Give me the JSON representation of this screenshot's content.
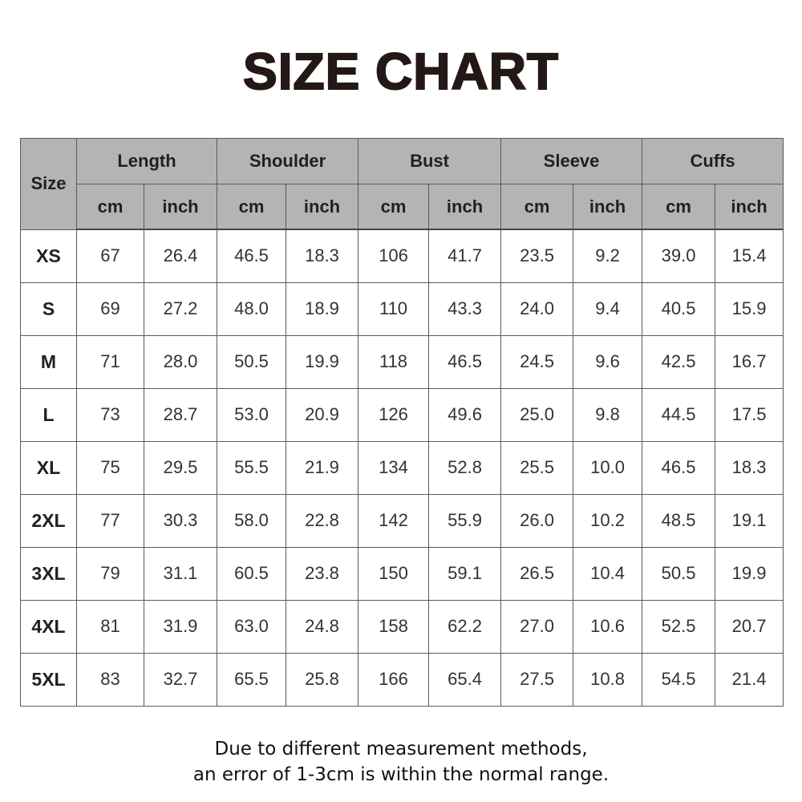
{
  "title": "SIZE CHART",
  "table": {
    "size_header": "Size",
    "groups": [
      "Length",
      "Shoulder",
      "Bust",
      "Sleeve",
      "Cuffs"
    ],
    "units": [
      "cm",
      "inch",
      "cm",
      "inch",
      "cm",
      "inch",
      "cm",
      "inch",
      "cm",
      "inch"
    ],
    "rows": [
      [
        "XS",
        "67",
        "26.4",
        "46.5",
        "18.3",
        "106",
        "41.7",
        "23.5",
        "9.2",
        "39.0",
        "15.4"
      ],
      [
        "S",
        "69",
        "27.2",
        "48.0",
        "18.9",
        "110",
        "43.3",
        "24.0",
        "9.4",
        "40.5",
        "15.9"
      ],
      [
        "M",
        "71",
        "28.0",
        "50.5",
        "19.9",
        "118",
        "46.5",
        "24.5",
        "9.6",
        "42.5",
        "16.7"
      ],
      [
        "L",
        "73",
        "28.7",
        "53.0",
        "20.9",
        "126",
        "49.6",
        "25.0",
        "9.8",
        "44.5",
        "17.5"
      ],
      [
        "XL",
        "75",
        "29.5",
        "55.5",
        "21.9",
        "134",
        "52.8",
        "25.5",
        "10.0",
        "46.5",
        "18.3"
      ],
      [
        "2XL",
        "77",
        "30.3",
        "58.0",
        "22.8",
        "142",
        "55.9",
        "26.0",
        "10.2",
        "48.5",
        "19.1"
      ],
      [
        "3XL",
        "79",
        "31.1",
        "60.5",
        "23.8",
        "150",
        "59.1",
        "26.5",
        "10.4",
        "50.5",
        "19.9"
      ],
      [
        "4XL",
        "81",
        "31.9",
        "63.0",
        "24.8",
        "158",
        "62.2",
        "27.0",
        "10.6",
        "52.5",
        "20.7"
      ],
      [
        "5XL",
        "83",
        "32.7",
        "65.5",
        "25.8",
        "166",
        "65.4",
        "27.5",
        "10.8",
        "54.5",
        "21.4"
      ]
    ]
  },
  "note": {
    "line1": "Due to different measurement methods,",
    "line2": "an error of 1-3cm is within the normal range."
  },
  "colors": {
    "header_bg": "#b4b4b4",
    "border": "#5a5a5a"
  }
}
